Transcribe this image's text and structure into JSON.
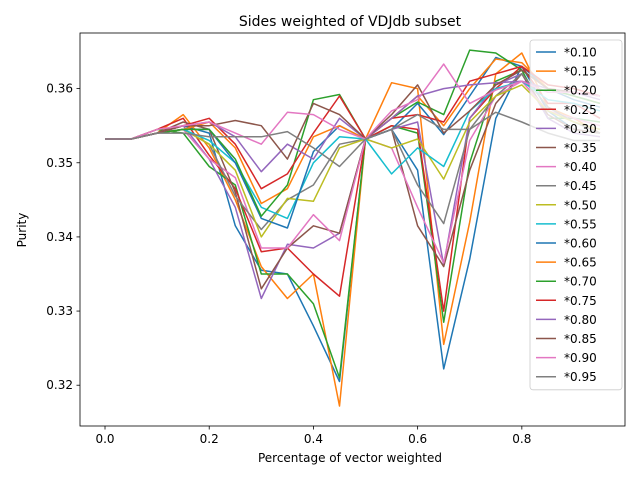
{
  "chart_data": {
    "type": "line",
    "title": "Sides weighted of VDJdb subset",
    "xlabel": "Percentage of vector weighted",
    "ylabel": "Purity",
    "xlim": [
      -0.048,
      0.998
    ],
    "ylim": [
      0.3145,
      0.3675
    ],
    "xticks": [
      0.0,
      0.2,
      0.4,
      0.6,
      0.8
    ],
    "xtick_labels": [
      "0.0",
      "0.2",
      "0.4",
      "0.6",
      "0.8"
    ],
    "yticks": [
      0.32,
      0.33,
      0.34,
      0.35,
      0.36
    ],
    "ytick_labels": [
      "0.32",
      "0.33",
      "0.34",
      "0.35",
      "0.36"
    ],
    "grid": false,
    "legend_position": "right",
    "x": [
      0.0,
      0.05,
      0.1,
      0.15,
      0.2,
      0.25,
      0.3,
      0.35,
      0.4,
      0.45,
      0.5,
      0.55,
      0.6,
      0.65,
      0.7,
      0.75,
      0.8,
      0.85,
      0.9,
      0.95
    ],
    "series": [
      {
        "name": "*0.10",
        "color": "#1f77b4",
        "values": [
          0.3532,
          0.3532,
          0.354,
          0.355,
          0.354,
          0.3415,
          0.3355,
          0.335,
          0.328,
          0.3205,
          0.3532,
          0.3545,
          0.349,
          0.3222,
          0.337,
          0.356,
          0.363,
          0.357,
          0.3545,
          0.354
        ]
      },
      {
        "name": "*0.15",
        "color": "#ff7f0e",
        "values": [
          0.3532,
          0.3532,
          0.354,
          0.3565,
          0.352,
          0.345,
          0.336,
          0.3317,
          0.335,
          0.3172,
          0.3532,
          0.3608,
          0.36,
          0.3255,
          0.342,
          0.362,
          0.3648,
          0.3575,
          0.356,
          0.354
        ]
      },
      {
        "name": "*0.20",
        "color": "#2ca02c",
        "values": [
          0.3532,
          0.3532,
          0.3545,
          0.354,
          0.3495,
          0.347,
          0.335,
          0.335,
          0.331,
          0.321,
          0.3532,
          0.355,
          0.354,
          0.3285,
          0.35,
          0.361,
          0.3625,
          0.356,
          0.356,
          0.3555
        ]
      },
      {
        "name": "*0.25",
        "color": "#d62728",
        "values": [
          0.3532,
          0.3532,
          0.3545,
          0.356,
          0.351,
          0.3465,
          0.338,
          0.3385,
          0.335,
          0.332,
          0.3532,
          0.355,
          0.3545,
          0.33,
          0.356,
          0.36,
          0.363,
          0.358,
          0.358,
          0.356
        ]
      },
      {
        "name": "*0.30",
        "color": "#9467bd",
        "values": [
          0.3532,
          0.3532,
          0.354,
          0.355,
          0.3505,
          0.344,
          0.3317,
          0.339,
          0.3385,
          0.3405,
          0.3532,
          0.3545,
          0.3555,
          0.3362,
          0.356,
          0.3605,
          0.362,
          0.356,
          0.354,
          0.3535
        ]
      },
      {
        "name": "*0.35",
        "color": "#8c564b",
        "values": [
          0.3532,
          0.3532,
          0.354,
          0.3555,
          0.3545,
          0.346,
          0.333,
          0.3385,
          0.3415,
          0.3405,
          0.3532,
          0.3545,
          0.3415,
          0.336,
          0.349,
          0.358,
          0.362,
          0.3565,
          0.3545,
          0.354
        ]
      },
      {
        "name": "*0.40",
        "color": "#e377c2",
        "values": [
          0.3532,
          0.3532,
          0.354,
          0.3545,
          0.3505,
          0.348,
          0.3385,
          0.3385,
          0.343,
          0.3395,
          0.3532,
          0.352,
          0.344,
          0.3365,
          0.353,
          0.359,
          0.361,
          0.357,
          0.356,
          0.355
        ]
      },
      {
        "name": "*0.45",
        "color": "#7f7f7f",
        "values": [
          0.3532,
          0.3532,
          0.354,
          0.3545,
          0.3525,
          0.3455,
          0.341,
          0.345,
          0.347,
          0.3525,
          0.3532,
          0.3545,
          0.347,
          0.3418,
          0.3545,
          0.359,
          0.362,
          0.3575,
          0.3555,
          0.354
        ]
      },
      {
        "name": "*0.50",
        "color": "#bcbd22",
        "values": [
          0.3532,
          0.3532,
          0.354,
          0.3545,
          0.3525,
          0.349,
          0.34,
          0.3452,
          0.3448,
          0.352,
          0.3532,
          0.352,
          0.3532,
          0.3478,
          0.3555,
          0.359,
          0.3605,
          0.357,
          0.3555,
          0.3545
        ]
      },
      {
        "name": "*0.55",
        "color": "#17becf",
        "values": [
          0.3532,
          0.3532,
          0.354,
          0.3545,
          0.353,
          0.35,
          0.344,
          0.3425,
          0.35,
          0.3535,
          0.3532,
          0.3485,
          0.352,
          0.3495,
          0.357,
          0.36,
          0.361,
          0.3585,
          0.358,
          0.357
        ]
      },
      {
        "name": "*0.60",
        "color": "#1f77b4",
        "values": [
          0.3532,
          0.3532,
          0.354,
          0.3545,
          0.3545,
          0.35,
          0.3425,
          0.3412,
          0.3515,
          0.355,
          0.3532,
          0.3545,
          0.358,
          0.3538,
          0.359,
          0.3642,
          0.363,
          0.36,
          0.3585,
          0.3575
        ]
      },
      {
        "name": "*0.65",
        "color": "#ff7f0e",
        "values": [
          0.3532,
          0.3532,
          0.354,
          0.3545,
          0.3555,
          0.352,
          0.3445,
          0.3465,
          0.3535,
          0.355,
          0.3532,
          0.356,
          0.359,
          0.355,
          0.36,
          0.364,
          0.3635,
          0.36,
          0.359,
          0.358
        ]
      },
      {
        "name": "*0.70",
        "color": "#2ca02c",
        "values": [
          0.3532,
          0.3532,
          0.354,
          0.3545,
          0.3545,
          0.3505,
          0.3428,
          0.347,
          0.3585,
          0.3592,
          0.3532,
          0.356,
          0.3582,
          0.3565,
          0.3652,
          0.3648,
          0.3625,
          0.36,
          0.359,
          0.358
        ]
      },
      {
        "name": "*0.75",
        "color": "#d62728",
        "values": [
          0.3532,
          0.3532,
          0.354,
          0.355,
          0.356,
          0.3525,
          0.3465,
          0.3485,
          0.354,
          0.359,
          0.3532,
          0.356,
          0.3565,
          0.3555,
          0.361,
          0.362,
          0.363,
          0.3605,
          0.36,
          0.359
        ]
      },
      {
        "name": "*0.80",
        "color": "#9467bd",
        "values": [
          0.3532,
          0.3532,
          0.354,
          0.355,
          0.3555,
          0.3535,
          0.3488,
          0.3525,
          0.3505,
          0.356,
          0.3532,
          0.356,
          0.359,
          0.36,
          0.3605,
          0.3608,
          0.361,
          0.36,
          0.3595,
          0.3585
        ]
      },
      {
        "name": "*0.85",
        "color": "#8c564b",
        "values": [
          0.3532,
          0.3532,
          0.354,
          0.355,
          0.355,
          0.3557,
          0.355,
          0.3505,
          0.358,
          0.3565,
          0.3532,
          0.3565,
          0.3605,
          0.354,
          0.357,
          0.3605,
          0.3625,
          0.36,
          0.3595,
          0.359
        ]
      },
      {
        "name": "*0.90",
        "color": "#e377c2",
        "values": [
          0.3532,
          0.3532,
          0.3545,
          0.355,
          0.3555,
          0.354,
          0.3525,
          0.3568,
          0.3565,
          0.3545,
          0.3532,
          0.357,
          0.3585,
          0.3633,
          0.358,
          0.3598,
          0.361,
          0.3595,
          0.3595,
          0.359
        ]
      },
      {
        "name": "*0.95",
        "color": "#7f7f7f",
        "values": [
          0.3532,
          0.3532,
          0.354,
          0.354,
          0.3535,
          0.3535,
          0.3535,
          0.3542,
          0.352,
          0.3495,
          0.3532,
          0.3545,
          0.3565,
          0.3545,
          0.3545,
          0.3568,
          0.3555,
          0.354,
          0.353,
          0.353
        ]
      }
    ]
  }
}
